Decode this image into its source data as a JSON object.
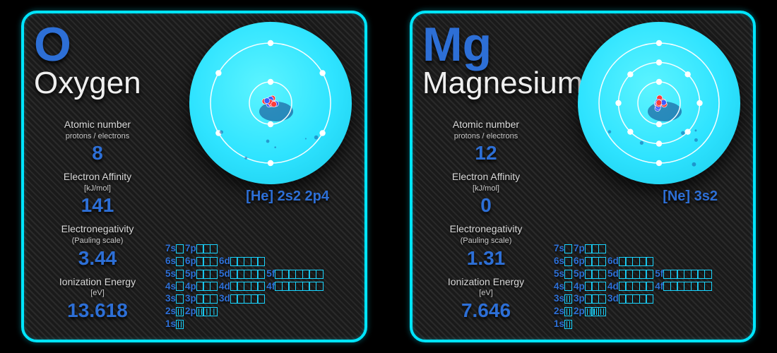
{
  "colors": {
    "border": "#00e5ff",
    "accent_text": "#2d6fd6",
    "box_border": "#19d4ff",
    "atom_fill": "#2ee3ff",
    "bg_dark": "#1a1a1a"
  },
  "orbital_scheme": [
    {
      "shell": "7",
      "sub": [
        {
          "l": "s",
          "n": 1
        },
        {
          "l": "p",
          "n": 3
        }
      ]
    },
    {
      "shell": "6",
      "sub": [
        {
          "l": "s",
          "n": 1
        },
        {
          "l": "p",
          "n": 3
        },
        {
          "l": "d",
          "n": 5
        }
      ]
    },
    {
      "shell": "5",
      "sub": [
        {
          "l": "s",
          "n": 1
        },
        {
          "l": "p",
          "n": 3
        },
        {
          "l": "d",
          "n": 5
        },
        {
          "l": "f",
          "n": 7
        }
      ]
    },
    {
      "shell": "4",
      "sub": [
        {
          "l": "s",
          "n": 1
        },
        {
          "l": "p",
          "n": 3
        },
        {
          "l": "d",
          "n": 5
        },
        {
          "l": "f",
          "n": 7
        }
      ]
    },
    {
      "shell": "3",
      "sub": [
        {
          "l": "s",
          "n": 1
        },
        {
          "l": "p",
          "n": 3
        },
        {
          "l": "d",
          "n": 5
        }
      ]
    },
    {
      "shell": "2",
      "sub": [
        {
          "l": "s",
          "n": 1
        },
        {
          "l": "p",
          "n": 3
        }
      ]
    },
    {
      "shell": "1",
      "sub": [
        {
          "l": "s",
          "n": 1
        }
      ]
    }
  ],
  "cards": [
    {
      "symbol": "O",
      "name": "Oxygen",
      "props": [
        {
          "label": "Atomic number",
          "sub": "protons / electrons",
          "value": "8"
        },
        {
          "label": "Electron Affinity",
          "sub": "[kJ/mol]",
          "value": "141"
        },
        {
          "label": "Electronegativity",
          "sub": "(Pauling scale)",
          "value": "3.44"
        },
        {
          "label": "Ionization Energy",
          "sub": "[eV]",
          "value": "13.618"
        }
      ],
      "econf_label": "[He] 2s2 2p4",
      "shells": [
        2,
        6
      ],
      "fill": {
        "1s": 2,
        "2s": 2,
        "2p": 4
      }
    },
    {
      "symbol": "Mg",
      "name": "Magnesium",
      "props": [
        {
          "label": "Atomic number",
          "sub": "protons / electrons",
          "value": "12"
        },
        {
          "label": "Electron Affinity",
          "sub": "[kJ/mol]",
          "value": "0"
        },
        {
          "label": "Electronegativity",
          "sub": "(Pauling scale)",
          "value": "1.31"
        },
        {
          "label": "Ionization Energy",
          "sub": "[eV]",
          "value": "7.646"
        }
      ],
      "econf_label": "[Ne] 3s2",
      "shells": [
        2,
        8,
        2
      ],
      "fill": {
        "1s": 2,
        "2s": 2,
        "2p": 6,
        "3s": 2
      }
    }
  ]
}
